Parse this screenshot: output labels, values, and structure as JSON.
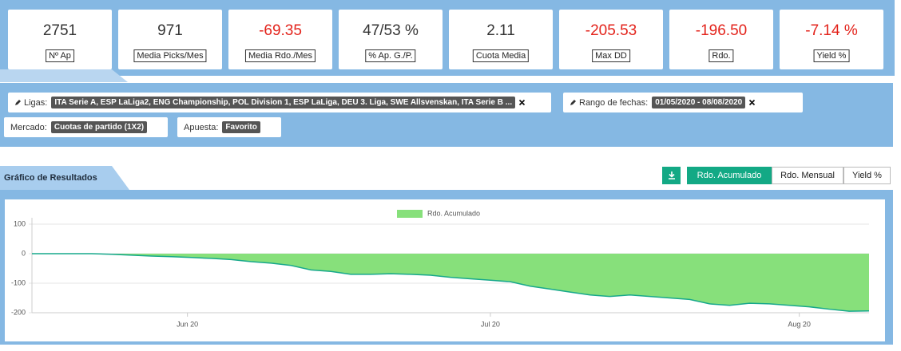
{
  "stats": [
    {
      "value": "2751",
      "label": "Nº Ap",
      "color": "#333333"
    },
    {
      "value": "971",
      "label": "Media Picks/Mes",
      "color": "#333333"
    },
    {
      "value": "-69.35",
      "label": "Media Rdo./Mes",
      "color": "#e3231b"
    },
    {
      "value": "47/53 %",
      "label": "% Ap. G./P.",
      "color": "#333333"
    },
    {
      "value": "2.11",
      "label": "Cuota Media",
      "color": "#333333"
    },
    {
      "value": "-205.53",
      "label": "Max DD",
      "color": "#e3231b"
    },
    {
      "value": "-196.50",
      "label": "Rdo.",
      "color": "#e3231b"
    },
    {
      "value": "-7.14 %",
      "label": "Yield %",
      "color": "#e3231b"
    }
  ],
  "filters": [
    {
      "label": "Ligas:",
      "value": "ITA Serie A, ESP LaLiga2, ENG Championship, POL Division 1, ESP LaLiga, DEU 3. Liga, SWE Allsvenskan, ITA Serie B ...",
      "editable": true,
      "removable": true
    },
    {
      "label": "Rango de fechas:",
      "value": "01/05/2020 - 08/08/2020",
      "editable": true,
      "removable": true
    },
    {
      "label": "Mercado:",
      "value": "Cuotas de partido (1X2)",
      "editable": false,
      "removable": false
    },
    {
      "label": "Apuesta:",
      "value": "Favorito",
      "editable": false,
      "removable": false
    }
  ],
  "chart_panel": {
    "tab": "Gráfico de Resultados",
    "buttons": [
      "Rdo. Acumulado",
      "Rdo. Mensual",
      "Yield %"
    ],
    "active_button": 0
  },
  "chart_data": {
    "type": "area",
    "series": [
      {
        "name": "Rdo. Acumulado",
        "color": "#87e07b",
        "line_color": "#17a88b",
        "values": [
          0,
          0,
          0,
          0,
          -2,
          -5,
          -8,
          -10,
          -13,
          -16,
          -20,
          -27,
          -32,
          -40,
          -55,
          -60,
          -70,
          -70,
          -68,
          -70,
          -73,
          -80,
          -85,
          -90,
          -95,
          -110,
          -120,
          -130,
          -140,
          -145,
          -140,
          -145,
          -150,
          -155,
          -170,
          -175,
          -168,
          -170,
          -175,
          -180,
          -188,
          -195,
          -194
        ]
      }
    ],
    "xlim": [
      0,
      42
    ],
    "xticks": [
      {
        "value": 7.8,
        "label": "Jun 20"
      },
      {
        "value": 23,
        "label": "Jul 20"
      },
      {
        "value": 38.5,
        "label": "Aug 20"
      }
    ],
    "ylim": [
      -200,
      100
    ],
    "yticks": [
      -200,
      -100,
      0,
      100
    ],
    "grid": true,
    "legend": "top"
  }
}
